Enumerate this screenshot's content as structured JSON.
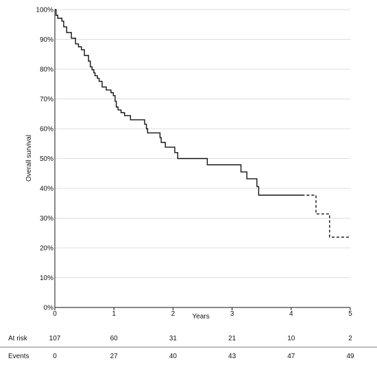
{
  "chart_data": {
    "type": "line",
    "title": "",
    "xlabel": "Years",
    "ylabel": "Overall survival",
    "xlim": [
      0,
      5
    ],
    "ylim": [
      0,
      100
    ],
    "x_ticks": [
      0,
      1,
      2,
      3,
      4,
      5
    ],
    "x_tick_labels": [
      "0",
      "1",
      "2",
      "3",
      "4",
      "5"
    ],
    "y_ticks": [
      0,
      10,
      20,
      30,
      40,
      50,
      60,
      70,
      80,
      90,
      100
    ],
    "y_tick_labels": [
      "0%",
      "10%",
      "20%",
      "30%",
      "40%",
      "50%",
      "60%",
      "70%",
      "80%",
      "90%",
      "100%"
    ],
    "grid": "horizontal",
    "line_color": "#111111",
    "grid_color": "#dddddd",
    "series": [
      {
        "style": "solid",
        "step_points": [
          [
            0,
            100
          ],
          [
            0.02,
            98.1
          ],
          [
            0.05,
            97.1
          ],
          [
            0.12,
            96.1
          ],
          [
            0.15,
            94.2
          ],
          [
            0.2,
            92.3
          ],
          [
            0.28,
            90.4
          ],
          [
            0.35,
            88.5
          ],
          [
            0.4,
            87.5
          ],
          [
            0.45,
            86.5
          ],
          [
            0.5,
            84.6
          ],
          [
            0.57,
            82.7
          ],
          [
            0.6,
            80.8
          ],
          [
            0.63,
            79.8
          ],
          [
            0.66,
            78.8
          ],
          [
            0.68,
            77.8
          ],
          [
            0.72,
            76.9
          ],
          [
            0.75,
            75.9
          ],
          [
            0.8,
            74.0
          ],
          [
            0.87,
            73.0
          ],
          [
            0.95,
            72.1
          ],
          [
            0.99,
            71.1
          ],
          [
            1.02,
            69.2
          ],
          [
            1.04,
            67.3
          ],
          [
            1.07,
            66.3
          ],
          [
            1.12,
            65.4
          ],
          [
            1.18,
            64.4
          ],
          [
            1.28,
            63.0
          ],
          [
            1.52,
            61.5
          ],
          [
            1.55,
            60.0
          ],
          [
            1.57,
            58.6
          ],
          [
            1.78,
            57.0
          ],
          [
            1.8,
            55.4
          ],
          [
            1.87,
            53.8
          ],
          [
            2.03,
            52.0
          ],
          [
            2.08,
            50.0
          ],
          [
            2.58,
            47.9
          ],
          [
            3.15,
            45.5
          ],
          [
            3.25,
            43.2
          ],
          [
            3.42,
            40.6
          ],
          [
            3.45,
            37.7
          ],
          [
            4.18,
            37.7
          ]
        ]
      },
      {
        "style": "dashed",
        "step_points": [
          [
            4.18,
            37.7
          ],
          [
            4.42,
            37.7
          ],
          [
            4.42,
            31.4
          ],
          [
            4.65,
            31.4
          ],
          [
            4.65,
            23.6
          ],
          [
            5.0,
            23.6
          ]
        ]
      }
    ]
  },
  "risk_table": {
    "rows": [
      {
        "label": "At risk",
        "values": [
          "107",
          "60",
          "31",
          "21",
          "10",
          "2"
        ]
      },
      {
        "label": "Events",
        "values": [
          "0",
          "27",
          "40",
          "43",
          "47",
          "49"
        ]
      }
    ]
  }
}
